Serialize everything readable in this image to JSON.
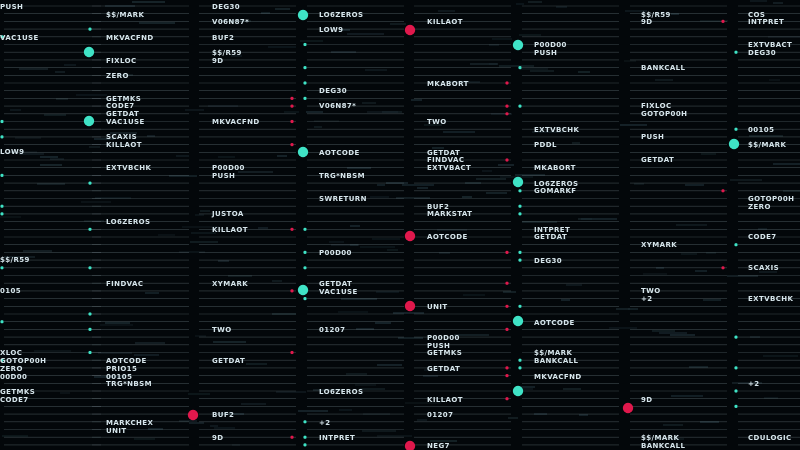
{
  "palette": {
    "background": "#03070a",
    "teal": "#3fe3c6",
    "red": "#e0184c",
    "text": "#d7e6ec",
    "dim": "#4a5a60"
  },
  "columns": [
    {
      "id": "col0",
      "marker": "teal",
      "labels": [
        "PUSH",
        "VAC1USE",
        "LOW9",
        "$$/R59",
        "0105",
        "XLOC",
        "GOTOP00H",
        "ZERO",
        "00D00",
        "GETMKS",
        "CODE7"
      ]
    },
    {
      "id": "col1",
      "marker": "teal",
      "labels": [
        "$$/MARK",
        "MKVACFND",
        "FIXLOC",
        "ZERO",
        "GETMKS",
        "CODE7",
        "GETDAT",
        "VAC1USE",
        "SCAXIS",
        "KILLAOT",
        "EXTVBCHK",
        "LO6ZEROS",
        "FINDVAC",
        "AOTCODE",
        "PRIO15",
        "00105",
        "TRG*NBSM",
        "MARKCHEX",
        "UNIT"
      ]
    },
    {
      "id": "col2",
      "marker": "red",
      "labels": [
        "DEG30",
        "V06N87*",
        "BUF2",
        "$$/R59",
        "9D",
        "MKVACFND",
        "P00D00",
        "PUSH",
        "JUSTOA",
        "KILLAOT",
        "XYMARK",
        "TWO",
        "GETDAT",
        "BUF2",
        "9D"
      ]
    },
    {
      "id": "col3",
      "marker": "teal",
      "labels": [
        "LO6ZEROS",
        "LOW9",
        "DEG30",
        "V06N87*",
        "AOTCODE",
        "TRG*NBSM",
        "SWRETURN",
        "P00D00",
        "GETDAT",
        "VAC1USE",
        "01207",
        "LO6ZEROS",
        "+2",
        "INTPRET"
      ]
    },
    {
      "id": "col4",
      "marker": "red",
      "labels": [
        "KILLAOT",
        "MKABORT",
        "TWO",
        "GETDAT",
        "FINDVAC",
        "EXTVBACT",
        "BUF2",
        "MARKSTAT",
        "AOTCODE",
        "UNIT",
        "P00D00",
        "PUSH",
        "GETMKS",
        "GETDAT",
        "KILLAOT",
        "01207",
        "NEG7"
      ]
    },
    {
      "id": "col5",
      "marker": "teal",
      "labels": [
        "P00D00",
        "PUSH",
        "EXTVBCHK",
        "PDDL",
        "MKABORT",
        "LO6ZEROS",
        "GOMARKF",
        "INTPRET",
        "GETDAT",
        "DEG30",
        "AOTCODE",
        "$$/MARK",
        "BANKCALL",
        "MKVACFND"
      ]
    },
    {
      "id": "col6",
      "marker": "red",
      "labels": [
        "$$/R59",
        "9D",
        "BANKCALL",
        "FIXLOC",
        "GOTOP00H",
        "PUSH",
        "GETDAT",
        "XYMARK",
        "TWO",
        "+2",
        "9D",
        "$$/MARK",
        "BANKCALL"
      ]
    },
    {
      "id": "col7",
      "marker": "teal",
      "labels": [
        "COS",
        "INTPRET",
        "EXTVBACT",
        "DEG30",
        "00105",
        "$$/MARK",
        "GOTOP00H",
        "ZERO",
        "CODE7",
        "SCAXIS",
        "EXTVBCHK",
        "+2",
        "CDULOGIC"
      ]
    }
  ]
}
